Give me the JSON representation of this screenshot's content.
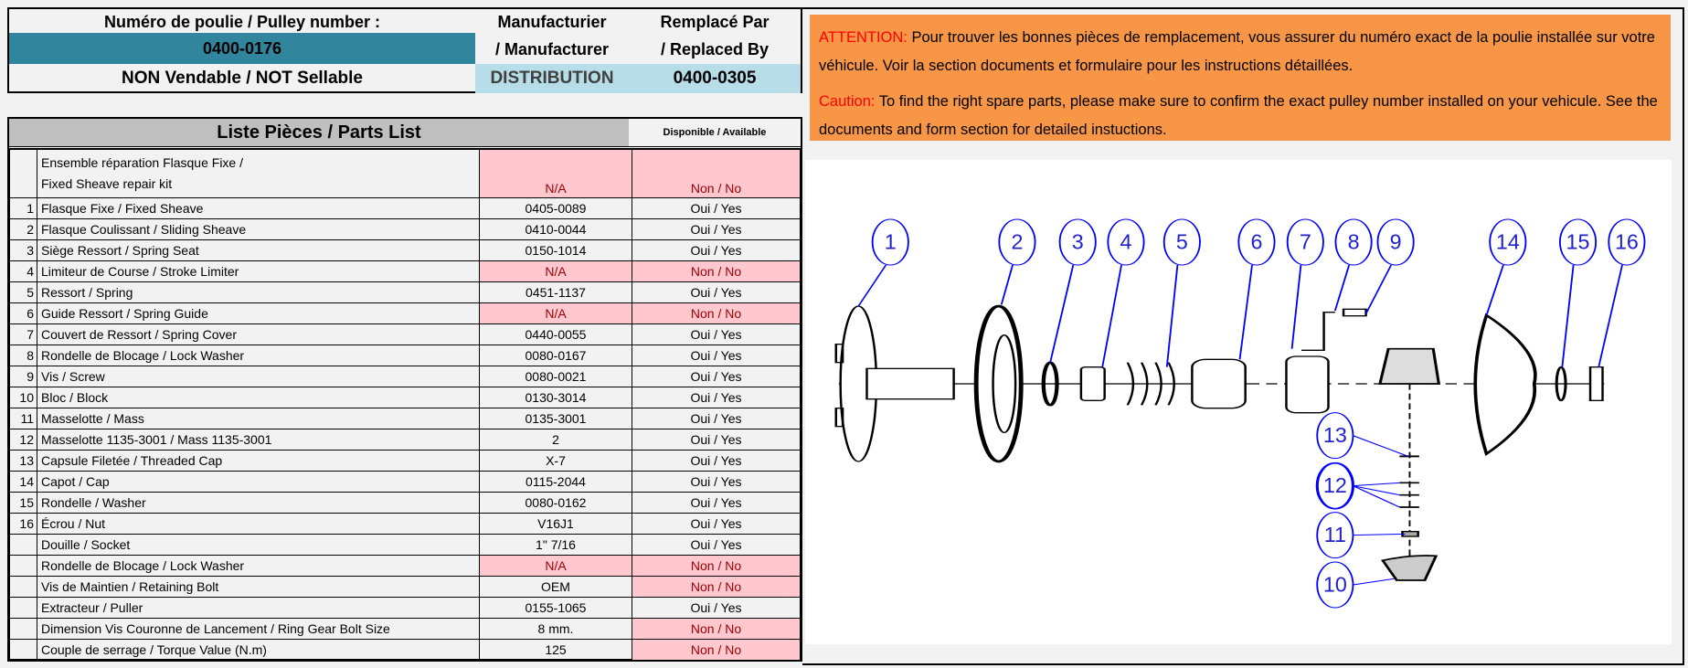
{
  "header": {
    "pulley_label": "Numéro de poulie / Pulley number :",
    "pulley_number": "0400-0176",
    "sellable_status": "NON Vendable / NOT Sellable",
    "manufacturer_label_1": "Manufacturier",
    "manufacturer_label_2": "/ Manufacturer",
    "manufacturer_value": "DISTRIBUTION",
    "replaced_label_1": "Remplacé Par",
    "replaced_label_2": "/ Replaced By",
    "replaced_value": "0400-0305"
  },
  "parts_list": {
    "title": "Liste Pièces / Parts List",
    "available_header": "Disponible / Available",
    "kit": {
      "line1": "Ensemble réparation Flasque Fixe /",
      "line2": "Fixed Sheave repair kit",
      "part": "N/A",
      "available": "Non / No"
    },
    "rows": [
      {
        "num": "1",
        "desc": "Flasque Fixe / Fixed Sheave",
        "part": "0405-0089",
        "available": "Oui / Yes",
        "part_na": false,
        "avail_na": false
      },
      {
        "num": "2",
        "desc": "Flasque Coulissant / Sliding Sheave",
        "part": "0410-0044",
        "available": "Oui / Yes",
        "part_na": false,
        "avail_na": false
      },
      {
        "num": "3",
        "desc": "Siège Ressort / Spring Seat",
        "part": "0150-1014",
        "available": "Oui / Yes",
        "part_na": false,
        "avail_na": false
      },
      {
        "num": "4",
        "desc": "Limiteur de Course / Stroke Limiter",
        "part": "N/A",
        "available": "Non / No",
        "part_na": true,
        "avail_na": true
      },
      {
        "num": "5",
        "desc": "Ressort / Spring",
        "part": "0451-1137",
        "available": "Oui / Yes",
        "part_na": false,
        "avail_na": false
      },
      {
        "num": "6",
        "desc": "Guide Ressort / Spring Guide",
        "part": "N/A",
        "available": "Non / No",
        "part_na": true,
        "avail_na": true
      },
      {
        "num": "7",
        "desc": "Couvert de Ressort / Spring Cover",
        "part": "0440-0055",
        "available": "Oui / Yes",
        "part_na": false,
        "avail_na": false
      },
      {
        "num": "8",
        "desc": "Rondelle de Blocage / Lock Washer",
        "part": "0080-0167",
        "available": "Oui / Yes",
        "part_na": false,
        "avail_na": false
      },
      {
        "num": "9",
        "desc": "Vis / Screw",
        "part": "0080-0021",
        "available": "Oui / Yes",
        "part_na": false,
        "avail_na": false
      },
      {
        "num": "10",
        "desc": "Bloc / Block",
        "part": "0130-3014",
        "available": "Oui / Yes",
        "part_na": false,
        "avail_na": false
      },
      {
        "num": "11",
        "desc": "Masselotte / Mass",
        "part": "0135-3001",
        "available": "Oui / Yes",
        "part_na": false,
        "avail_na": false
      },
      {
        "num": "12",
        "desc": "Masselotte 1135-3001 / Mass 1135-3001",
        "part": "2",
        "available": "Oui / Yes",
        "part_na": false,
        "avail_na": false
      },
      {
        "num": "13",
        "desc": "Capsule Filetée / Threaded Cap",
        "part": "X-7",
        "available": "Oui / Yes",
        "part_na": false,
        "avail_na": false
      },
      {
        "num": "14",
        "desc": "Capot / Cap",
        "part": "0115-2044",
        "available": "Oui / Yes",
        "part_na": false,
        "avail_na": false
      },
      {
        "num": "15",
        "desc": "Rondelle / Washer",
        "part": "0080-0162",
        "available": "Oui / Yes",
        "part_na": false,
        "avail_na": false
      },
      {
        "num": "16",
        "desc": "Écrou / Nut",
        "part": "V16J1",
        "available": "Oui / Yes",
        "part_na": false,
        "avail_na": false
      },
      {
        "num": "",
        "desc": "Douille / Socket",
        "part": "1\" 7/16",
        "available": "Oui / Yes",
        "part_na": false,
        "avail_na": false
      },
      {
        "num": "",
        "desc": "Rondelle de  Blocage / Lock Washer",
        "part": "N/A",
        "available": "Non / No",
        "part_na": true,
        "avail_na": true
      },
      {
        "num": "",
        "desc": "Vis de Maintien / Retaining Bolt",
        "part": "OEM",
        "available": "Non / No",
        "part_na": false,
        "avail_na": true
      },
      {
        "num": "",
        "desc": "Extracteur / Puller",
        "part": "0155-1065",
        "available": "Oui / Yes",
        "part_na": false,
        "avail_na": false
      },
      {
        "num": "",
        "desc": "Dimension Vis Couronne de Lancement / Ring Gear Bolt Size",
        "part": "8 mm.",
        "available": "Non / No",
        "part_na": false,
        "avail_na": true
      },
      {
        "num": "",
        "desc": "Couple de serrage / Torque Value (N.m)",
        "part": "125",
        "available": "Non / No",
        "part_na": false,
        "avail_na": true
      }
    ]
  },
  "notice": {
    "attention_label": "ATTENTION:",
    "attention_text": " Pour trouver les bonnes pièces de remplacement, vous assurer du numéro exact de la poulie installée sur votre véhicule. Voir la section documents et formulaire pour les instructions détaillées.",
    "caution_label": "Caution:",
    "caution_text": " To find the right spare parts, please make sure to confirm the exact pulley number installed on your vehicule. See the documents and form section for detailed instuctions."
  },
  "diagram": {
    "callouts": [
      "1",
      "2",
      "3",
      "4",
      "5",
      "6",
      "7",
      "8",
      "9",
      "14",
      "15",
      "16",
      "13",
      "12",
      "11",
      "10"
    ]
  },
  "colors": {
    "teal": "#31859c",
    "light_blue": "#b7dee8",
    "na_fill": "#ffc7ce",
    "na_text": "#9c0006",
    "notice": "#f79646",
    "callout": "#0000ff"
  }
}
